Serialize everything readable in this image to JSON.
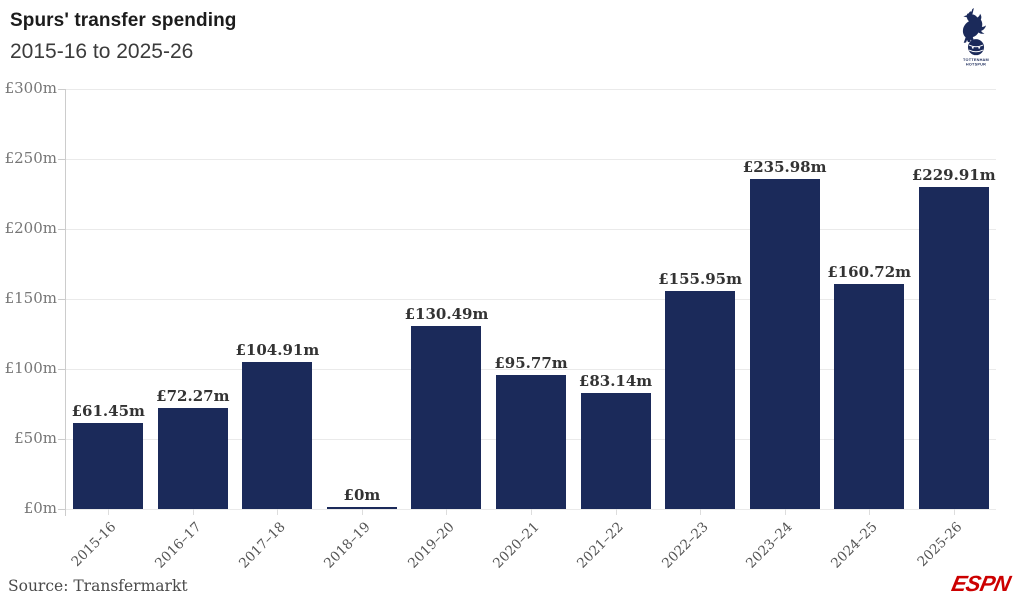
{
  "header": {
    "title": "Spurs' transfer spending",
    "subtitle": "2015-16 to 2025-26",
    "club_badge": "tottenham-hotspur-crest",
    "club_badge_line1": "TOTTENHAM",
    "club_badge_line2": "HOTSPUR"
  },
  "chart_data": {
    "type": "bar",
    "title": "Spurs' transfer spending",
    "subtitle": "2015-16 to 2025-26",
    "categories": [
      "2015-16",
      "2016–17",
      "2017–18",
      "2018–19",
      "2019–20",
      "2020–21",
      "2021–22",
      "2022–23",
      "2023–24",
      "2024–25",
      "2025-26"
    ],
    "values": [
      61.45,
      72.27,
      104.91,
      0,
      130.49,
      95.77,
      83.14,
      155.95,
      235.98,
      160.72,
      229.91
    ],
    "value_labels": [
      "£61.45m",
      "£72.27m",
      "£104.91m",
      "£0m",
      "£130.49m",
      "£95.77m",
      "£83.14m",
      "£155.95m",
      "£235.98m",
      "£160.72m",
      "£229.91m"
    ],
    "unit": "£m",
    "xlabel": "",
    "ylabel": "",
    "ylim": [
      0,
      300
    ],
    "y_tick_values": [
      0,
      50,
      100,
      150,
      200,
      250,
      300
    ],
    "y_ticks": [
      "£0m",
      "£50m",
      "£100m",
      "£150m",
      "£200m",
      "£250m",
      "£300m"
    ],
    "grid": true,
    "legend_position": "none",
    "bar_color": "#1b2a5a"
  },
  "footer": {
    "source": "Source: Transfermarkt",
    "logo": "ESPN"
  },
  "colors": {
    "bar": "#1b2a5a",
    "title_text": "#1c1c1c",
    "subtitle_text": "#3b3b3b",
    "axis_label": "#767676",
    "x_axis_label": "#555555",
    "value_label": "#333333",
    "gridline": "#eaeaea",
    "axis_line": "#cccccc",
    "source_text": "#4a4a4a",
    "espn_red": "#cc0000",
    "background": "#ffffff"
  }
}
